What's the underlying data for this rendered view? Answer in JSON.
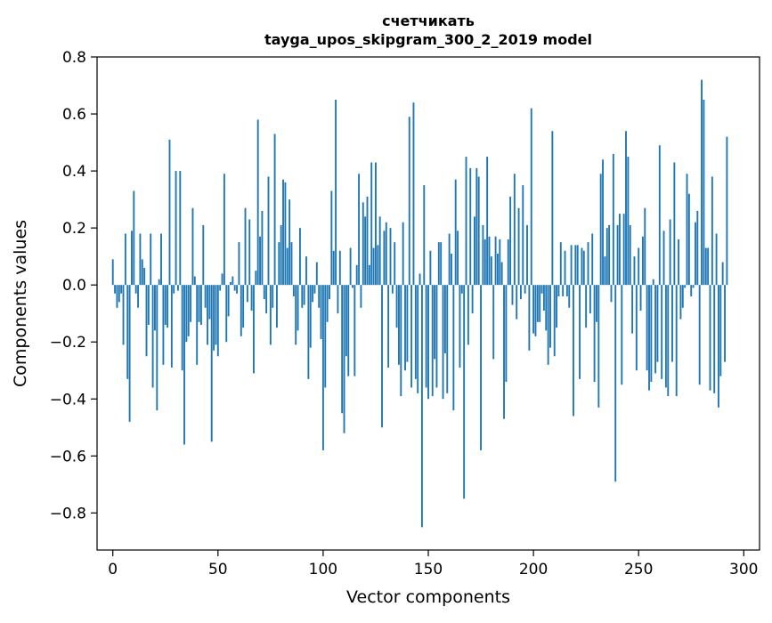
{
  "chart_data": {
    "type": "bar",
    "title": "счетчикать",
    "subtitle": "tayga_upos_skipgram_300_2_2019 model",
    "xlabel": "Vector components",
    "ylabel": "Components values",
    "xlim": [
      -7.5,
      307.5
    ],
    "ylim": [
      -0.93,
      0.8
    ],
    "xticks": [
      0,
      50,
      100,
      150,
      200,
      250,
      300
    ],
    "xtick_labels": [
      "0",
      "50",
      "100",
      "150",
      "200",
      "250",
      "300"
    ],
    "yticks": [
      -0.8,
      -0.6,
      -0.4,
      -0.2,
      0.0,
      0.2,
      0.4,
      0.6,
      0.8
    ],
    "ytick_labels": [
      "−0.8",
      "−0.6",
      "−0.4",
      "−0.2",
      "0.0",
      "0.2",
      "0.4",
      "0.6",
      "0.8"
    ],
    "grid": false,
    "color": "#1f77b4",
    "x_start": 0,
    "values": [
      0.09,
      -0.03,
      -0.08,
      -0.06,
      -0.03,
      -0.21,
      0.18,
      -0.33,
      -0.48,
      0.19,
      0.33,
      -0.03,
      -0.08,
      0.18,
      0.09,
      0.06,
      -0.25,
      -0.14,
      0.18,
      -0.36,
      -0.16,
      -0.44,
      0.02,
      0.18,
      -0.28,
      -0.14,
      -0.15,
      0.51,
      -0.29,
      -0.03,
      0.4,
      -0.02,
      0.4,
      -0.3,
      -0.56,
      -0.2,
      -0.18,
      -0.13,
      0.27,
      0.03,
      -0.28,
      -0.13,
      -0.14,
      0.21,
      -0.08,
      -0.21,
      -0.12,
      -0.55,
      -0.23,
      -0.21,
      -0.25,
      -0.02,
      0.04,
      0.39,
      -0.2,
      -0.11,
      0.01,
      0.03,
      -0.02,
      -0.03,
      0.15,
      -0.18,
      -0.15,
      0.27,
      -0.06,
      0.23,
      -0.09,
      -0.31,
      0.05,
      0.58,
      0.17,
      0.26,
      -0.05,
      -0.1,
      0.38,
      -0.21,
      -0.08,
      0.53,
      -0.15,
      0.15,
      0.21,
      0.37,
      0.36,
      0.13,
      0.3,
      0.15,
      -0.04,
      -0.21,
      -0.16,
      0.2,
      -0.08,
      -0.07,
      0.1,
      -0.33,
      -0.22,
      -0.06,
      -0.03,
      0.08,
      -0.08,
      -0.19,
      -0.58,
      -0.36,
      -0.13,
      -0.05,
      0.33,
      0.12,
      0.65,
      -0.1,
      0.12,
      -0.45,
      -0.52,
      -0.25,
      -0.32,
      0.13,
      -0.01,
      -0.32,
      0.07,
      0.39,
      -0.08,
      0.29,
      0.24,
      0.31,
      0.07,
      0.43,
      0.13,
      0.43,
      0.14,
      0.24,
      -0.5,
      0.19,
      0.22,
      -0.29,
      0.2,
      -0.03,
      0.15,
      -0.15,
      -0.28,
      -0.39,
      0.22,
      -0.3,
      -0.27,
      0.59,
      -0.36,
      0.64,
      -0.33,
      -0.38,
      0.04,
      -0.85,
      0.35,
      -0.36,
      -0.4,
      0.12,
      -0.39,
      -0.26,
      -0.36,
      0.15,
      0.15,
      -0.4,
      -0.24,
      -0.38,
      0.18,
      0.11,
      -0.44,
      0.37,
      0.19,
      -0.29,
      -0.03,
      -0.75,
      0.45,
      -0.21,
      0.41,
      -0.1,
      0.24,
      0.41,
      0.38,
      -0.58,
      0.21,
      0.16,
      0.45,
      0.17,
      0.1,
      -0.26,
      0.17,
      0.11,
      0.16,
      0.08,
      -0.47,
      -0.34,
      0.16,
      0.31,
      -0.07,
      0.39,
      -0.12,
      0.27,
      -0.05,
      0.35,
      -0.03,
      0.21,
      -0.23,
      0.62,
      -0.17,
      -0.18,
      -0.13,
      -0.13,
      -0.03,
      -0.09,
      -0.16,
      -0.28,
      -0.22,
      0.54,
      -0.25,
      -0.15,
      -0.04,
      0.15,
      -0.04,
      0.12,
      -0.04,
      -0.08,
      0.14,
      -0.46,
      0.14,
      0.14,
      -0.33,
      0.13,
      0.12,
      -0.15,
      0.15,
      -0.1,
      0.18,
      -0.34,
      -0.13,
      -0.43,
      0.39,
      0.44,
      0.1,
      0.2,
      0.21,
      -0.06,
      0.46,
      -0.69,
      0.21,
      0.25,
      -0.35,
      0.25,
      0.54,
      0.45,
      0.21,
      -0.17,
      0.1,
      -0.3,
      0.13,
      -0.09,
      0.17,
      0.27,
      -0.3,
      -0.37,
      -0.34,
      0.02,
      -0.31,
      -0.27,
      0.49,
      -0.33,
      0.19,
      -0.36,
      -0.39,
      0.23,
      -0.27,
      0.43,
      -0.39,
      0.16,
      -0.12,
      -0.08,
      -0.01,
      0.39,
      0.32,
      -0.04,
      -0.01,
      0.22,
      0.26,
      -0.35,
      0.72,
      0.65,
      0.13,
      0.13,
      -0.37,
      0.38,
      -0.38,
      0.18,
      -0.43,
      -0.32,
      0.08,
      -0.27,
      0.52
    ]
  }
}
